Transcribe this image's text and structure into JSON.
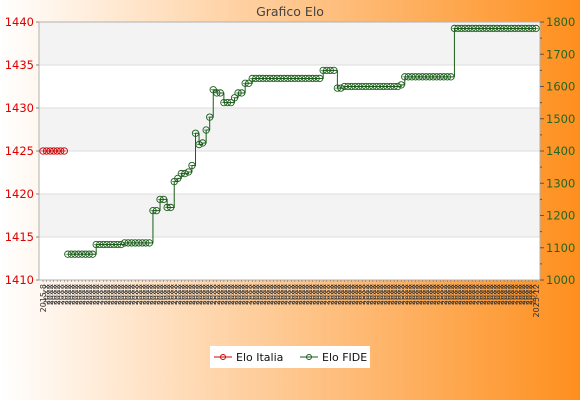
{
  "chart_data": {
    "type": "line",
    "title": "Grafico Elo",
    "background": {
      "from": "#ffffff",
      "to": "#fe8f1e"
    },
    "plot": {
      "band_color": "#f3f3f3",
      "grid_color": "#dddddd",
      "border_color": "#b0b0b0"
    },
    "y_left": {
      "min": 1410,
      "max": 1440,
      "color": "#dd0000",
      "ticks": [
        "1410",
        "1415",
        "1420",
        "1425",
        "1430",
        "1435",
        "1440"
      ]
    },
    "y_right": {
      "min": 1000,
      "max": 1800,
      "color": "#226622",
      "ticks": [
        "1000",
        "1100",
        "1200",
        "1300",
        "1400",
        "1500",
        "1600",
        "1700",
        "1800"
      ]
    },
    "x": {
      "first_label": "2015-8",
      "label_text": "20XX",
      "last_label": "2025-12"
    },
    "series": [
      {
        "name": "Elo Italia",
        "axis": "left",
        "color": "#cc0000",
        "points": [
          [
            0,
            1425
          ],
          [
            1,
            1425
          ],
          [
            2,
            1425
          ],
          [
            3,
            1425
          ],
          [
            4,
            1425
          ],
          [
            5,
            1425
          ],
          [
            6,
            1425
          ]
        ]
      },
      {
        "name": "Elo FIDE",
        "axis": "right",
        "color": "#1a5e1a",
        "points": [
          [
            7,
            1080
          ],
          [
            8,
            1080
          ],
          [
            9,
            1080
          ],
          [
            10,
            1080
          ],
          [
            11,
            1080
          ],
          [
            12,
            1080
          ],
          [
            13,
            1080
          ],
          [
            14,
            1080
          ],
          [
            15,
            1110
          ],
          [
            16,
            1110
          ],
          [
            17,
            1110
          ],
          [
            18,
            1110
          ],
          [
            19,
            1110
          ],
          [
            20,
            1110
          ],
          [
            21,
            1110
          ],
          [
            22,
            1110
          ],
          [
            23,
            1115
          ],
          [
            24,
            1115
          ],
          [
            25,
            1115
          ],
          [
            26,
            1115
          ],
          [
            27,
            1115
          ],
          [
            28,
            1115
          ],
          [
            29,
            1115
          ],
          [
            30,
            1115
          ],
          [
            31,
            1215
          ],
          [
            32,
            1215
          ],
          [
            33,
            1250
          ],
          [
            34,
            1250
          ],
          [
            35,
            1225
          ],
          [
            36,
            1225
          ],
          [
            37,
            1305
          ],
          [
            38,
            1315
          ],
          [
            39,
            1330
          ],
          [
            40,
            1330
          ],
          [
            41,
            1335
          ],
          [
            42,
            1355
          ],
          [
            43,
            1455
          ],
          [
            44,
            1420
          ],
          [
            45,
            1425
          ],
          [
            46,
            1465
          ],
          [
            47,
            1505
          ],
          [
            48,
            1590
          ],
          [
            49,
            1580
          ],
          [
            50,
            1580
          ],
          [
            51,
            1550
          ],
          [
            52,
            1550
          ],
          [
            53,
            1550
          ],
          [
            54,
            1565
          ],
          [
            55,
            1580
          ],
          [
            56,
            1580
          ],
          [
            57,
            1610
          ],
          [
            58,
            1610
          ],
          [
            59,
            1625
          ],
          [
            60,
            1625
          ],
          [
            61,
            1625
          ],
          [
            62,
            1625
          ],
          [
            63,
            1625
          ],
          [
            64,
            1625
          ],
          [
            65,
            1625
          ],
          [
            66,
            1625
          ],
          [
            67,
            1625
          ],
          [
            68,
            1625
          ],
          [
            69,
            1625
          ],
          [
            70,
            1625
          ],
          [
            71,
            1625
          ],
          [
            72,
            1625
          ],
          [
            73,
            1625
          ],
          [
            74,
            1625
          ],
          [
            75,
            1625
          ],
          [
            76,
            1625
          ],
          [
            77,
            1625
          ],
          [
            78,
            1625
          ],
          [
            79,
            1650
          ],
          [
            80,
            1650
          ],
          [
            81,
            1650
          ],
          [
            82,
            1650
          ],
          [
            83,
            1595
          ],
          [
            84,
            1595
          ],
          [
            85,
            1600
          ],
          [
            86,
            1600
          ],
          [
            87,
            1600
          ],
          [
            88,
            1600
          ],
          [
            89,
            1600
          ],
          [
            90,
            1600
          ],
          [
            91,
            1600
          ],
          [
            92,
            1600
          ],
          [
            93,
            1600
          ],
          [
            94,
            1600
          ],
          [
            95,
            1600
          ],
          [
            96,
            1600
          ],
          [
            97,
            1600
          ],
          [
            98,
            1600
          ],
          [
            99,
            1600
          ],
          [
            100,
            1600
          ],
          [
            101,
            1605
          ],
          [
            102,
            1630
          ],
          [
            103,
            1630
          ],
          [
            104,
            1630
          ],
          [
            105,
            1630
          ],
          [
            106,
            1630
          ],
          [
            107,
            1630
          ],
          [
            108,
            1630
          ],
          [
            109,
            1630
          ],
          [
            110,
            1630
          ],
          [
            111,
            1630
          ],
          [
            112,
            1630
          ],
          [
            113,
            1630
          ],
          [
            114,
            1630
          ],
          [
            115,
            1630
          ],
          [
            116,
            1780
          ],
          [
            117,
            1780
          ],
          [
            118,
            1780
          ],
          [
            119,
            1780
          ],
          [
            120,
            1780
          ],
          [
            121,
            1780
          ],
          [
            122,
            1780
          ],
          [
            123,
            1780
          ],
          [
            124,
            1780
          ],
          [
            125,
            1780
          ],
          [
            126,
            1780
          ],
          [
            127,
            1780
          ],
          [
            128,
            1780
          ],
          [
            129,
            1780
          ],
          [
            130,
            1780
          ],
          [
            131,
            1780
          ],
          [
            132,
            1780
          ],
          [
            133,
            1780
          ],
          [
            134,
            1780
          ],
          [
            135,
            1780
          ],
          [
            136,
            1780
          ],
          [
            137,
            1780
          ],
          [
            138,
            1780
          ],
          [
            139,
            1780
          ]
        ]
      }
    ],
    "legend": {
      "position": "bottom-center"
    }
  }
}
